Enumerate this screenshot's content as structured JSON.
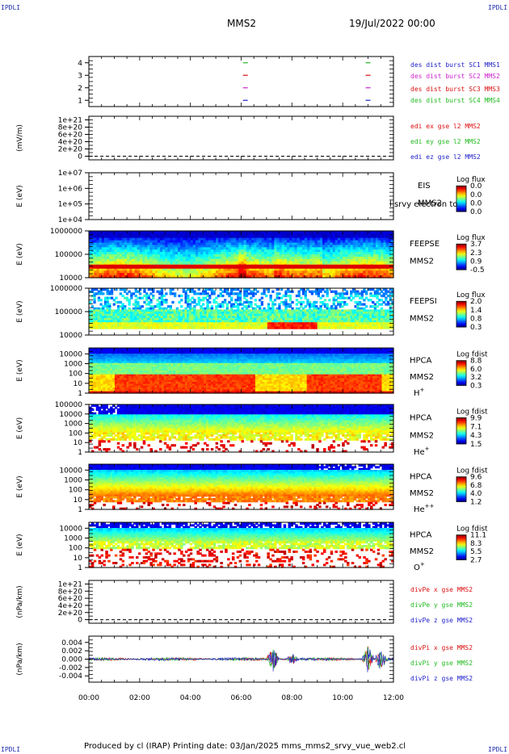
{
  "header": {
    "corner_label": "IPDLI",
    "spacecraft": "MMS2",
    "date": "19/Jul/2022 00:00"
  },
  "footer": {
    "text": "Produced by cl (IRAP)   Printing date: 03/Jan/2025   mms_mms2_srvy_vue_web2.cl"
  },
  "colors": {
    "mms1": "#2222cc",
    "mms2": "#cc22cc",
    "mms3": "#dd1111",
    "mms4": "#22bb22",
    "x": "#dd1111",
    "y": "#22bb22",
    "z": "#2222cc"
  },
  "chart_data": [
    {
      "id": "burst",
      "type": "scatter",
      "yticks": [
        "1",
        "2",
        "3",
        "4"
      ],
      "ylim": [
        0.5,
        4.5
      ],
      "legend": [
        "des dist burst SC1 MMS1",
        "des dist burst SC2 MMS2",
        "des dist burst SC3 MMS3",
        "des dist burst SC4 MMS4"
      ],
      "series": [
        {
          "name": "des dist burst SC1 MMS1",
          "level": 1,
          "x": [
            "06:10",
            "11:00"
          ]
        },
        {
          "name": "des dist burst SC2 MMS2",
          "level": 2,
          "x": [
            "06:10",
            "11:00"
          ]
        },
        {
          "name": "des dist burst SC3 MMS3",
          "level": 3,
          "x": [
            "06:10",
            "11:00"
          ]
        },
        {
          "name": "des dist burst SC4 MMS4",
          "level": 4,
          "x": [
            "06:10",
            "11:00"
          ]
        }
      ]
    },
    {
      "id": "edi",
      "type": "line",
      "ylabel": "(mV/m)",
      "yticks": [
        "0",
        "2e+20",
        "4e+20",
        "6e+20",
        "8e+20",
        "1e+21"
      ],
      "ylim": [
        -1e+20,
        1.1e+21
      ],
      "zero_line": true,
      "legend": [
        "edi ex gse l2 MMS2",
        "edi ey gse l2 MMS2",
        "edi ez gse l2 MMS2"
      ]
    },
    {
      "id": "eis",
      "type": "heatmap",
      "ylabel": "E (eV)",
      "yticks": [
        "1e+04",
        "1e+05",
        "1e+06",
        "1e+07"
      ],
      "log": true,
      "ylim": [
        10000,
        10000000
      ],
      "side_labels": [
        "EIS",
        "MMS2"
      ],
      "overlay_text": "l srvy electron to",
      "colorbar": {
        "title": "Log flux",
        "ticks": [
          "0.0",
          "0.0",
          "0.0",
          "0.0"
        ]
      }
    },
    {
      "id": "feepse",
      "type": "heatmap",
      "ylabel": "E (eV)",
      "yticks": [
        "10000",
        "100000",
        "1000000"
      ],
      "log": true,
      "ylim": [
        10000,
        1000000
      ],
      "side_labels": [
        "FEEPSE",
        "MMS2"
      ],
      "colorbar": {
        "title": "Log flux",
        "ticks": [
          "3.7",
          "2.3",
          "0.9",
          "-0.5"
        ]
      }
    },
    {
      "id": "feepsi",
      "type": "heatmap",
      "ylabel": "E (eV)",
      "yticks": [
        "10000",
        "100000",
        "1000000"
      ],
      "log": true,
      "ylim": [
        10000,
        1000000
      ],
      "side_labels": [
        "FEEPSI",
        "MMS2"
      ],
      "colorbar": {
        "title": "Log flux",
        "ticks": [
          "2.0",
          "1.4",
          "0.8",
          "0.3"
        ]
      }
    },
    {
      "id": "hpca_h",
      "type": "heatmap",
      "ylabel": "E (eV)",
      "yticks": [
        "1",
        "10",
        "100",
        "1000",
        "10000"
      ],
      "log": true,
      "ylim": [
        1,
        40000
      ],
      "side_labels": [
        "HPCA",
        "MMS2",
        "H+"
      ],
      "colorbar": {
        "title": "Log fdist",
        "ticks": [
          "8.8",
          "6.0",
          "3.2",
          "0.3"
        ]
      }
    },
    {
      "id": "hpca_he",
      "type": "heatmap",
      "ylabel": "E (eV)",
      "yticks": [
        "1",
        "10",
        "100",
        "1000",
        "10000",
        "100000"
      ],
      "log": true,
      "ylim": [
        1,
        100000
      ],
      "side_labels": [
        "HPCA",
        "MMS2",
        "He+"
      ],
      "colorbar": {
        "title": "Log fdist",
        "ticks": [
          "9.9",
          "7.1",
          "4.3",
          "1.5"
        ]
      }
    },
    {
      "id": "hpca_hepp",
      "type": "heatmap",
      "ylabel": "E (eV)",
      "yticks": [
        "1",
        "10",
        "100",
        "1000",
        "10000"
      ],
      "log": true,
      "ylim": [
        1,
        40000
      ],
      "side_labels": [
        "HPCA",
        "MMS2",
        "He++"
      ],
      "colorbar": {
        "title": "Log fdist",
        "ticks": [
          "9.6",
          "6.8",
          "4.0",
          "1.2"
        ]
      }
    },
    {
      "id": "hpca_o",
      "type": "heatmap",
      "ylabel": "E (eV)",
      "yticks": [
        "1",
        "10",
        "100",
        "1000",
        "10000"
      ],
      "log": true,
      "ylim": [
        1,
        40000
      ],
      "side_labels": [
        "HPCA",
        "MMS2",
        "O+"
      ],
      "colorbar": {
        "title": "Log fdist",
        "ticks": [
          "11.1",
          "8.3",
          "5.5",
          "2.7"
        ]
      }
    },
    {
      "id": "divpe",
      "type": "line",
      "ylabel": "(nPa/km)",
      "yticks": [
        "0",
        "2e+20",
        "4e+20",
        "6e+20",
        "8e+20",
        "1e+21"
      ],
      "ylim": [
        -1e+20,
        1.1e+21
      ],
      "zero_line": true,
      "legend": [
        "divPe x gse MMS2",
        "divPe y gse MMS2",
        "divPe z gse MMS2"
      ]
    },
    {
      "id": "divpi",
      "type": "line",
      "ylabel": "(nPa/km)",
      "yticks": [
        "-0.004",
        "-0.002",
        "0.000",
        "0.002",
        "0.004"
      ],
      "ylim": [
        -0.0055,
        0.0055
      ],
      "legend": [
        "divPi x gse MMS2",
        "divPi y gse MMS2",
        "divPi z gse MMS2"
      ],
      "features": [
        {
          "x": "07:15",
          "min": -0.004,
          "max": 0.003
        },
        {
          "x": "08:00",
          "min": -0.002,
          "max": 0.001
        },
        {
          "x": "11:00",
          "min": -0.003,
          "max": 0.0045
        },
        {
          "x": "11:30",
          "min": -0.002,
          "max": 0.004
        }
      ]
    }
  ],
  "xaxis": {
    "ticks": [
      "00:00",
      "02:00",
      "04:00",
      "06:00",
      "08:00",
      "10:00",
      "12:00"
    ],
    "range_hours": [
      0,
      12
    ]
  }
}
